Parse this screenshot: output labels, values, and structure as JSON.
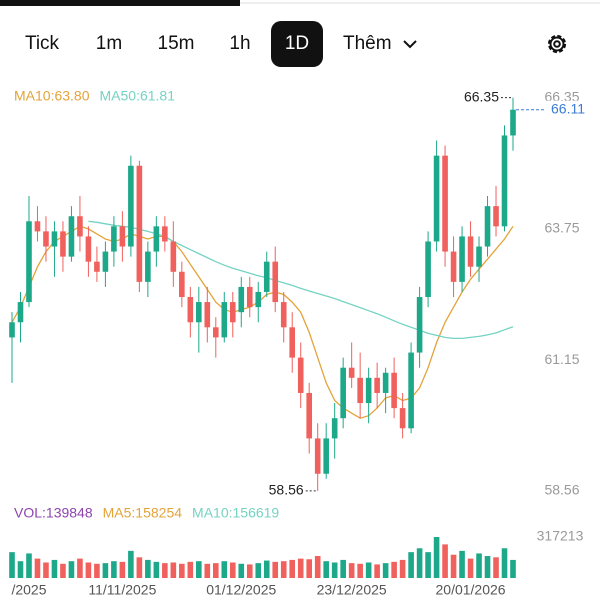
{
  "toolbar": {
    "tabs": [
      "Tick",
      "1m",
      "15m",
      "1h",
      "1D"
    ],
    "selected": 4,
    "more": "Thêm"
  },
  "chart_data": {
    "type": "candlestick",
    "up_color": "#1ea88a",
    "down_color": "#f0605d",
    "ylim": [
      58.38,
      66.5
    ],
    "yticks": [
      58.56,
      61.15,
      63.75,
      66.35
    ],
    "last_price": 66.11,
    "last_color": "#3a7bd5",
    "high_index": 59,
    "low_index": 36,
    "categories": [
      null,
      null,
      "/2025",
      null,
      null,
      null,
      null,
      null,
      null,
      null,
      null,
      null,
      null,
      "11/11/2025",
      null,
      null,
      null,
      null,
      null,
      null,
      null,
      null,
      null,
      null,
      null,
      null,
      null,
      "01/12/2025",
      null,
      null,
      null,
      null,
      null,
      null,
      null,
      null,
      null,
      null,
      null,
      null,
      "23/12/2025",
      null,
      null,
      null,
      null,
      null,
      null,
      null,
      null,
      null,
      null,
      null,
      null,
      null,
      "20/01/2026",
      null,
      null,
      null,
      null,
      null
    ],
    "ohlc": [
      [
        61.6,
        62.1,
        60.7,
        61.9
      ],
      [
        61.9,
        62.5,
        61.5,
        62.3
      ],
      [
        62.3,
        64.4,
        62.2,
        63.9
      ],
      [
        63.9,
        64.2,
        63.5,
        63.7
      ],
      [
        63.7,
        64.0,
        63.1,
        63.4
      ],
      [
        63.4,
        63.9,
        62.8,
        63.7
      ],
      [
        63.7,
        63.9,
        62.9,
        63.2
      ],
      [
        63.2,
        64.2,
        63.1,
        64.0
      ],
      [
        64.0,
        64.4,
        63.3,
        63.6
      ],
      [
        63.6,
        63.8,
        62.8,
        63.1
      ],
      [
        63.1,
        63.4,
        62.7,
        62.9
      ],
      [
        62.9,
        63.5,
        62.6,
        63.3
      ],
      [
        63.3,
        64.0,
        63.0,
        63.8
      ],
      [
        63.8,
        64.1,
        63.1,
        63.4
      ],
      [
        63.4,
        65.2,
        63.2,
        65.0
      ],
      [
        65.0,
        65.1,
        62.5,
        62.7
      ],
      [
        62.7,
        63.5,
        62.4,
        63.3
      ],
      [
        63.3,
        64.0,
        63.0,
        63.8
      ],
      [
        63.8,
        64.0,
        63.3,
        63.5
      ],
      [
        63.5,
        63.9,
        62.6,
        62.9
      ],
      [
        62.9,
        63.1,
        62.2,
        62.4
      ],
      [
        62.4,
        62.6,
        61.6,
        61.9
      ],
      [
        61.9,
        62.6,
        61.3,
        62.3
      ],
      [
        62.3,
        62.6,
        61.5,
        61.8
      ],
      [
        61.8,
        62.0,
        61.2,
        61.6
      ],
      [
        61.6,
        62.5,
        61.5,
        62.3
      ],
      [
        62.3,
        62.5,
        61.6,
        61.9
      ],
      [
        62.1,
        62.8,
        61.8,
        62.6
      ],
      [
        62.6,
        62.8,
        62.0,
        62.2
      ],
      [
        62.2,
        62.7,
        61.9,
        62.5
      ],
      [
        62.5,
        63.3,
        62.4,
        63.1
      ],
      [
        63.1,
        63.4,
        62.1,
        62.3
      ],
      [
        62.3,
        62.5,
        61.5,
        61.8
      ],
      [
        61.8,
        62.1,
        60.9,
        61.2
      ],
      [
        61.2,
        61.5,
        60.2,
        60.5
      ],
      [
        60.5,
        60.7,
        59.3,
        59.6
      ],
      [
        59.6,
        59.9,
        58.56,
        58.9
      ],
      [
        58.9,
        59.9,
        58.8,
        59.6
      ],
      [
        59.6,
        60.3,
        59.2,
        60.0
      ],
      [
        60.0,
        61.2,
        59.8,
        61.0
      ],
      [
        61.0,
        61.5,
        60.6,
        60.8
      ],
      [
        60.8,
        61.3,
        60.0,
        60.3
      ],
      [
        60.3,
        61.0,
        59.9,
        60.8
      ],
      [
        60.8,
        61.1,
        60.2,
        60.5
      ],
      [
        60.5,
        61.0,
        60.1,
        60.9
      ],
      [
        60.9,
        61.2,
        60.0,
        60.2
      ],
      [
        60.2,
        60.5,
        59.6,
        59.8
      ],
      [
        59.8,
        61.5,
        59.7,
        61.3
      ],
      [
        61.3,
        62.6,
        61.0,
        62.4
      ],
      [
        62.4,
        63.7,
        62.2,
        63.5
      ],
      [
        63.5,
        65.5,
        63.3,
        65.2
      ],
      [
        65.2,
        65.4,
        63.0,
        63.3
      ],
      [
        63.3,
        63.6,
        62.4,
        62.7
      ],
      [
        62.7,
        63.8,
        62.5,
        63.6
      ],
      [
        63.6,
        63.9,
        62.8,
        63.0
      ],
      [
        63.0,
        63.6,
        62.7,
        63.4
      ],
      [
        63.4,
        64.4,
        63.2,
        64.2
      ],
      [
        64.2,
        64.6,
        63.6,
        63.8
      ],
      [
        63.8,
        65.8,
        63.7,
        65.6
      ],
      [
        65.6,
        66.35,
        65.3,
        66.11
      ]
    ],
    "ma_lines": [
      {
        "label": "MA10:63.80",
        "color": "#e3a33a",
        "values": [
          61.9,
          62.2,
          62.6,
          63.0,
          63.3,
          63.5,
          63.6,
          63.7,
          63.8,
          63.75,
          63.65,
          63.55,
          63.5,
          63.55,
          63.65,
          63.6,
          63.55,
          63.6,
          63.6,
          63.5,
          63.3,
          63.05,
          62.8,
          62.55,
          62.3,
          62.15,
          62.1,
          62.15,
          62.2,
          62.3,
          62.45,
          62.5,
          62.45,
          62.3,
          62.1,
          61.7,
          61.2,
          60.7,
          60.35,
          60.2,
          60.1,
          60.0,
          60.05,
          60.2,
          60.4,
          60.45,
          60.35,
          60.4,
          60.6,
          61.0,
          61.5,
          61.9,
          62.2,
          62.5,
          62.75,
          62.95,
          63.15,
          63.35,
          63.55,
          63.8
        ]
      },
      {
        "label": "MA50:61.81",
        "color": "#74d3c3",
        "values": [
          null,
          null,
          null,
          null,
          null,
          null,
          null,
          null,
          null,
          63.9,
          63.88,
          63.85,
          63.82,
          63.8,
          63.78,
          63.74,
          63.7,
          63.65,
          63.6,
          63.5,
          63.42,
          63.34,
          63.26,
          63.18,
          63.1,
          63.03,
          62.97,
          62.92,
          62.87,
          62.82,
          62.78,
          62.73,
          62.68,
          62.63,
          62.57,
          62.52,
          62.47,
          62.42,
          62.37,
          62.31,
          62.25,
          62.19,
          62.13,
          62.07,
          62.0,
          61.93,
          61.86,
          61.8,
          61.74,
          61.68,
          61.64,
          61.6,
          61.58,
          61.58,
          61.6,
          61.62,
          61.65,
          61.69,
          61.75,
          61.81
        ]
      }
    ],
    "volume": {
      "legend": [
        "VOL:139848",
        "MA5:158254",
        "MA10:156619"
      ],
      "legend_colors": [
        "#8e44ad",
        "#e3a33a",
        "#74d3c3"
      ],
      "ylim": [
        0,
        317213
      ],
      "yticks": [
        317213
      ],
      "values": [
        200000,
        130000,
        190000,
        150000,
        120000,
        140000,
        110000,
        130000,
        150000,
        120000,
        110000,
        115000,
        130000,
        125000,
        210000,
        160000,
        140000,
        125000,
        115000,
        120000,
        110000,
        125000,
        130000,
        110000,
        115000,
        130000,
        120000,
        110000,
        105000,
        115000,
        135000,
        125000,
        130000,
        140000,
        150000,
        145000,
        170000,
        130000,
        120000,
        140000,
        115000,
        110000,
        120000,
        105000,
        115000,
        125000,
        140000,
        200000,
        230000,
        200000,
        317213,
        260000,
        180000,
        210000,
        150000,
        190000,
        170000,
        160000,
        230000,
        139848
      ]
    }
  }
}
